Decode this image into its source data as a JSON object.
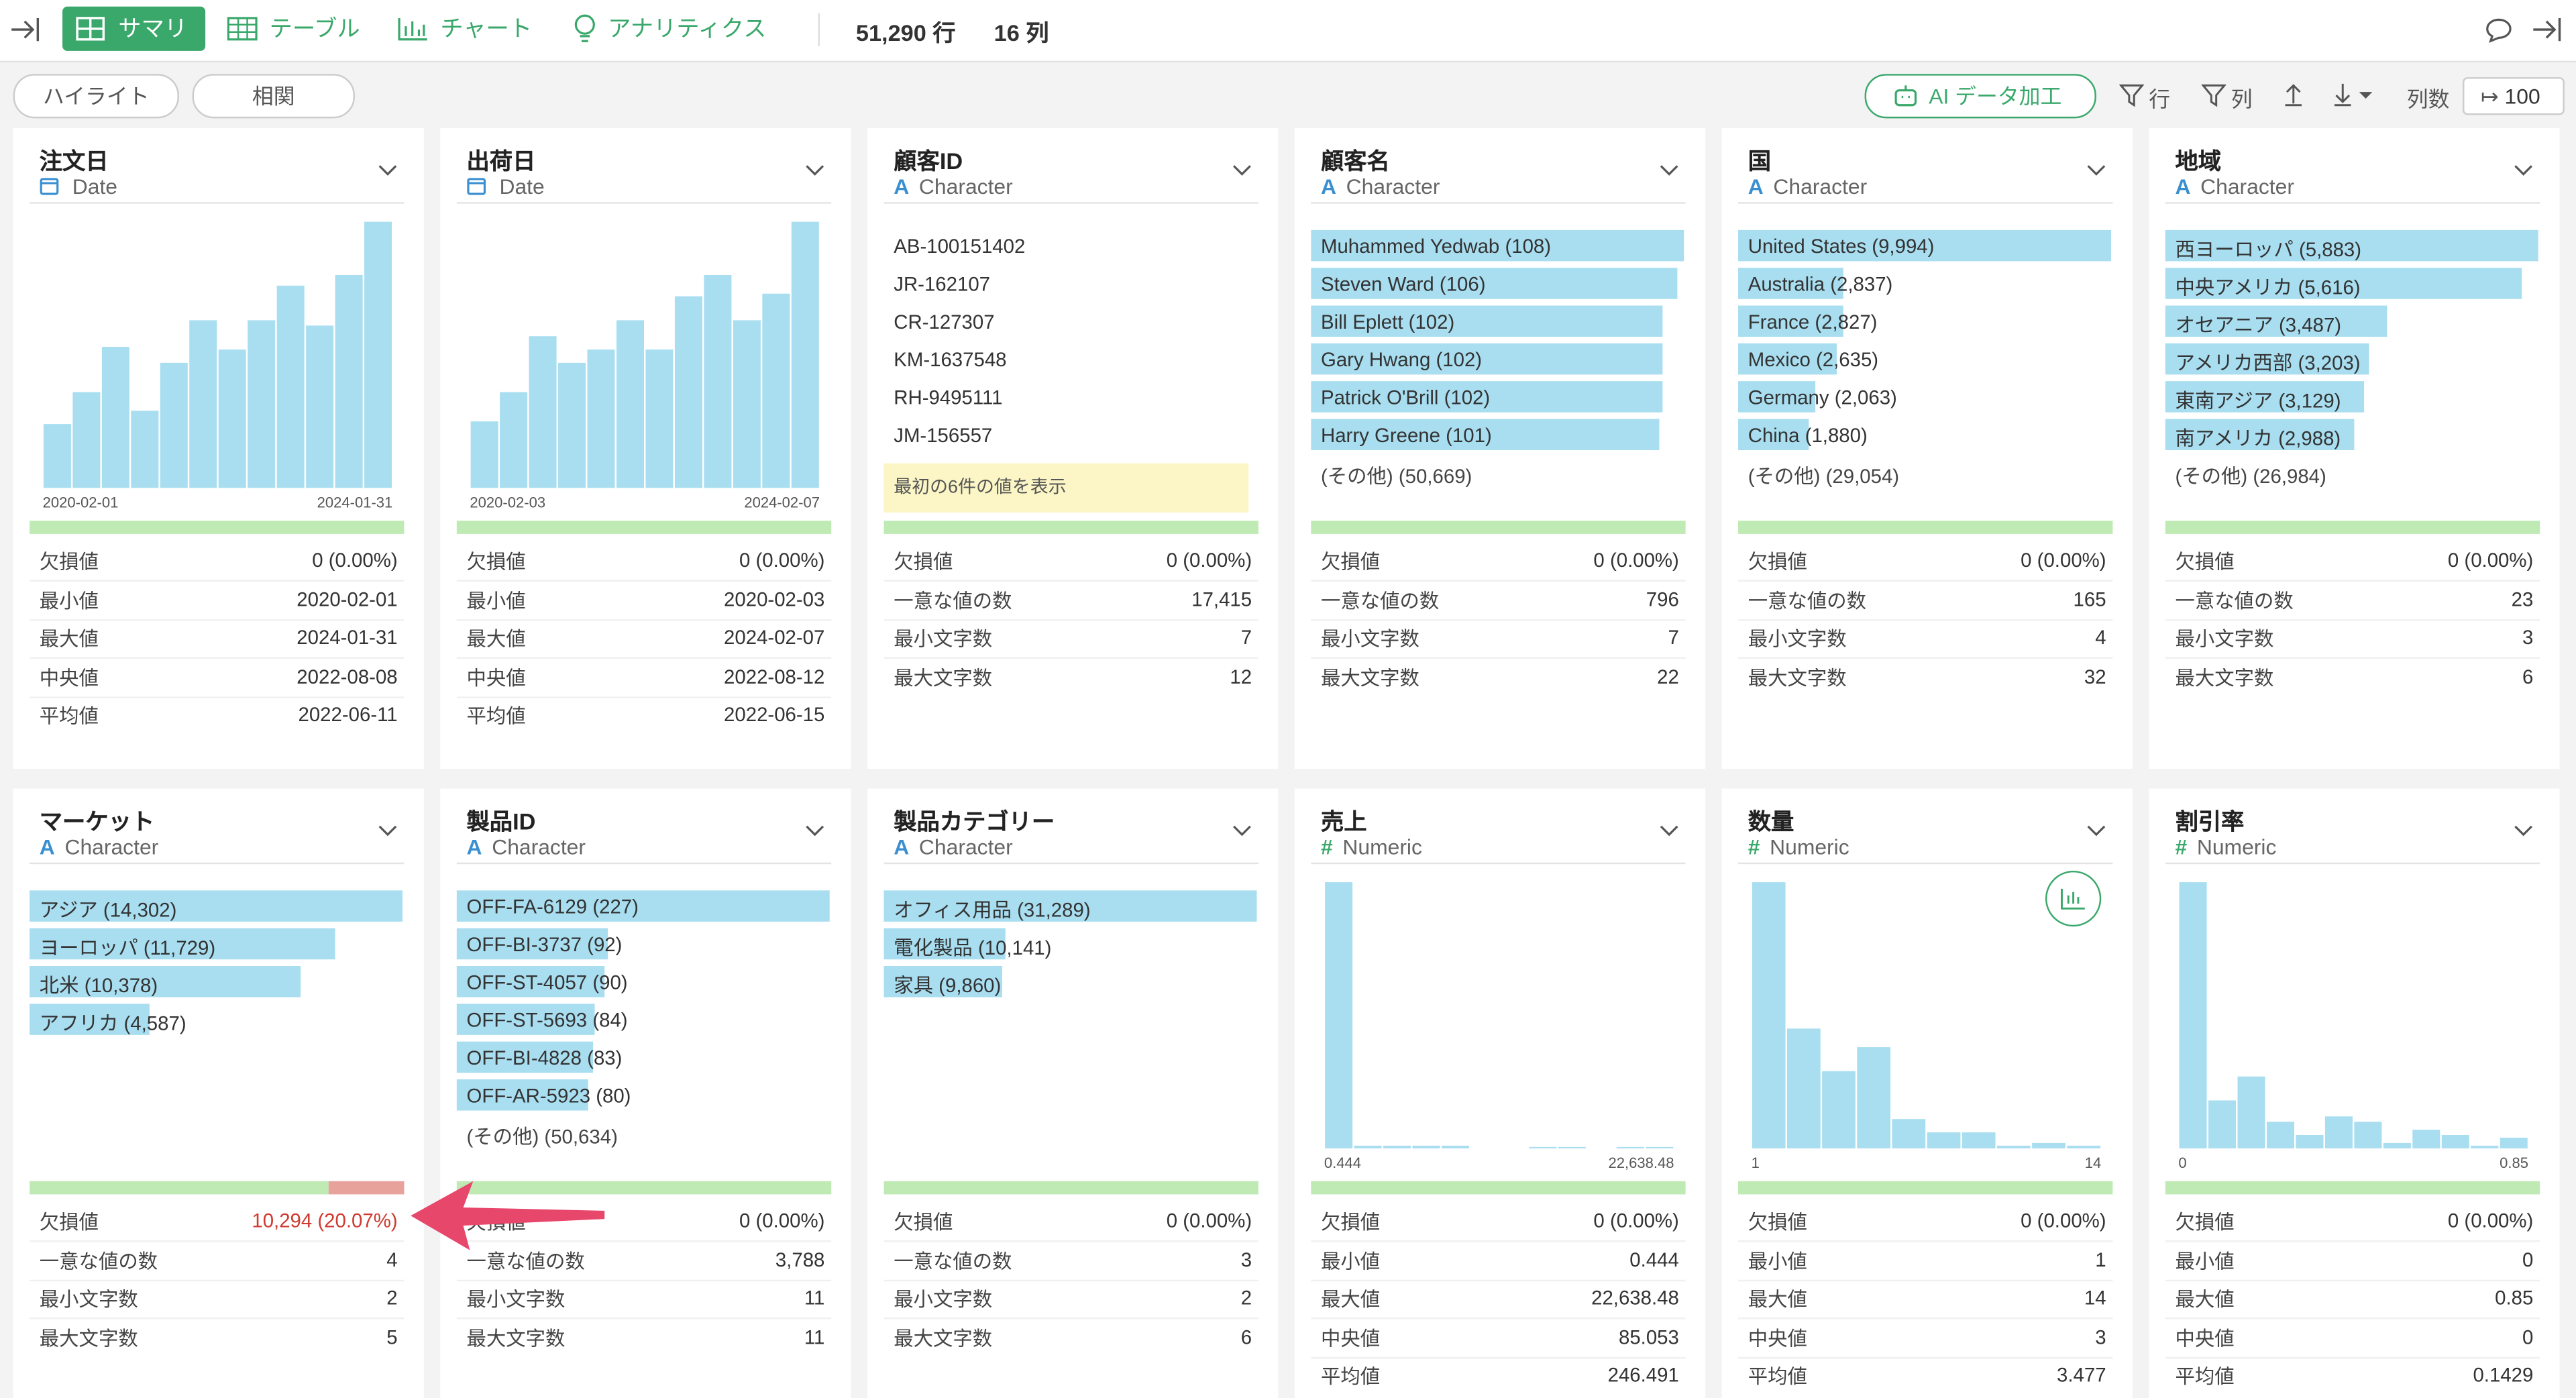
{
  "toolbar": {
    "tabs": [
      "サマリ",
      "テーブル",
      "チャート",
      "アナリティクス"
    ],
    "rows": "51,290 行",
    "cols": "16 列"
  },
  "subbar": {
    "buttons": [
      "ハイライト",
      "相関"
    ],
    "ai": "AI データ加工",
    "row_filter": "行",
    "col_filter": "列",
    "col_count_label": "列数",
    "col_count": "100"
  },
  "cards": [
    {
      "name": "注文日",
      "type": "Date",
      "chart": {
        "kind": "histogram",
        "bars": [
          24,
          36,
          53,
          29,
          47,
          63,
          52,
          63,
          76,
          61,
          80,
          100
        ],
        "xlabels": [
          "2020-02-01",
          "2024-01-31"
        ]
      },
      "missing_pct": 0,
      "stats": [
        {
          "label": "欠損値",
          "value": "0 (0.00%)"
        },
        {
          "label": "最小値",
          "value": "2020-02-01"
        },
        {
          "label": "最大値",
          "value": "2024-01-31"
        },
        {
          "label": "中央値",
          "value": "2022-08-08"
        },
        {
          "label": "平均値",
          "value": "2022-06-11"
        }
      ]
    },
    {
      "name": "出荷日",
      "type": "Date",
      "chart": {
        "kind": "histogram",
        "bars": [
          25,
          36,
          57,
          47,
          52,
          63,
          52,
          72,
          80,
          63,
          73,
          100
        ],
        "xlabels": [
          "2020-02-03",
          "2024-02-07"
        ]
      },
      "missing_pct": 0,
      "stats": [
        {
          "label": "欠損値",
          "value": "0 (0.00%)"
        },
        {
          "label": "最小値",
          "value": "2020-02-03"
        },
        {
          "label": "最大値",
          "value": "2024-02-07"
        },
        {
          "label": "中央値",
          "value": "2022-08-12"
        },
        {
          "label": "平均値",
          "value": "2022-06-15"
        }
      ]
    },
    {
      "name": "顧客ID",
      "type_icon": "A",
      "type": "Character",
      "chart": {
        "kind": "values",
        "items": [
          "AB-100151402",
          "JR-162107",
          "CR-127307",
          "KM-1637548",
          "RH-9495111",
          "JM-156557"
        ],
        "note": "最初の6件の値を表示"
      },
      "missing_pct": 0,
      "stats": [
        {
          "label": "欠損値",
          "value": "0 (0.00%)"
        },
        {
          "label": "一意な値の数",
          "value": "17,415"
        },
        {
          "label": "最小文字数",
          "value": "7"
        },
        {
          "label": "最大文字数",
          "value": "12"
        }
      ]
    },
    {
      "name": "顧客名",
      "type_icon": "A",
      "type": "Character",
      "chart": {
        "kind": "barlist",
        "items": [
          {
            "label": "Muhammed Yedwab (108)",
            "value": 108
          },
          {
            "label": "Steven Ward (106)",
            "value": 106
          },
          {
            "label": "Bill Eplett (102)",
            "value": 102
          },
          {
            "label": "Gary Hwang (102)",
            "value": 102
          },
          {
            "label": "Patrick O'Brill (102)",
            "value": 102
          },
          {
            "label": "Harry Greene (101)",
            "value": 101
          }
        ],
        "other": "(その他) (50,669)"
      },
      "missing_pct": 0,
      "stats": [
        {
          "label": "欠損値",
          "value": "0 (0.00%)"
        },
        {
          "label": "一意な値の数",
          "value": "796"
        },
        {
          "label": "最小文字数",
          "value": "7"
        },
        {
          "label": "最大文字数",
          "value": "22"
        }
      ]
    },
    {
      "name": "国",
      "type_icon": "A",
      "type": "Character",
      "chart": {
        "kind": "barlist",
        "items": [
          {
            "label": "United States (9,994)",
            "value": 9994
          },
          {
            "label": "Australia (2,837)",
            "value": 2837
          },
          {
            "label": "France (2,827)",
            "value": 2827
          },
          {
            "label": "Mexico (2,635)",
            "value": 2635
          },
          {
            "label": "Germany (2,063)",
            "value": 2063
          },
          {
            "label": "China (1,880)",
            "value": 1880
          }
        ],
        "other": "(その他) (29,054)"
      },
      "missing_pct": 0,
      "stats": [
        {
          "label": "欠損値",
          "value": "0 (0.00%)"
        },
        {
          "label": "一意な値の数",
          "value": "165"
        },
        {
          "label": "最小文字数",
          "value": "4"
        },
        {
          "label": "最大文字数",
          "value": "32"
        }
      ]
    },
    {
      "name": "地域",
      "type_icon": "A",
      "type": "Character",
      "chart": {
        "kind": "barlist",
        "items": [
          {
            "label": "西ヨーロッパ (5,883)",
            "value": 5883
          },
          {
            "label": "中央アメリカ (5,616)",
            "value": 5616
          },
          {
            "label": "オセアニア (3,487)",
            "value": 3487
          },
          {
            "label": "アメリカ西部 (3,203)",
            "value": 3203
          },
          {
            "label": "東南アジア (3,129)",
            "value": 3129
          },
          {
            "label": "南アメリカ (2,988)",
            "value": 2988
          }
        ],
        "other": "(その他) (26,984)"
      },
      "missing_pct": 0,
      "stats": [
        {
          "label": "欠損値",
          "value": "0 (0.00%)"
        },
        {
          "label": "一意な値の数",
          "value": "23"
        },
        {
          "label": "最小文字数",
          "value": "3"
        },
        {
          "label": "最大文字数",
          "value": "6"
        }
      ]
    },
    {
      "name": "マーケット",
      "type_icon": "A",
      "type": "Character",
      "chart": {
        "kind": "barlist",
        "items": [
          {
            "label": "アジア (14,302)",
            "value": 14302
          },
          {
            "label": "ヨーロッパ (11,729)",
            "value": 11729
          },
          {
            "label": "北米 (10,378)",
            "value": 10378
          },
          {
            "label": "アフリカ (4,587)",
            "value": 4587
          }
        ]
      },
      "missing_pct": 20.07,
      "stats": [
        {
          "label": "欠損値",
          "value": "10,294 (20.07%)",
          "alert": true
        },
        {
          "label": "一意な値の数",
          "value": "4"
        },
        {
          "label": "最小文字数",
          "value": "2"
        },
        {
          "label": "最大文字数",
          "value": "5"
        }
      ]
    },
    {
      "name": "製品ID",
      "type_icon": "A",
      "type": "Character",
      "chart": {
        "kind": "barlist",
        "items": [
          {
            "label": "OFF-FA-6129 (227)",
            "value": 227
          },
          {
            "label": "OFF-BI-3737 (92)",
            "value": 92
          },
          {
            "label": "OFF-ST-4057 (90)",
            "value": 90
          },
          {
            "label": "OFF-ST-5693 (84)",
            "value": 84
          },
          {
            "label": "OFF-BI-4828 (83)",
            "value": 83
          },
          {
            "label": "OFF-AR-5923 (80)",
            "value": 80
          }
        ],
        "other": "(その他) (50,634)"
      },
      "missing_pct": 0,
      "stats": [
        {
          "label": "欠損値",
          "value": "0 (0.00%)"
        },
        {
          "label": "一意な値の数",
          "value": "3,788"
        },
        {
          "label": "最小文字数",
          "value": "11"
        },
        {
          "label": "最大文字数",
          "value": "11"
        }
      ]
    },
    {
      "name": "製品カテゴリー",
      "type_icon": "A",
      "type": "Character",
      "chart": {
        "kind": "barlist",
        "items": [
          {
            "label": "オフィス用品 (31,289)",
            "value": 31289
          },
          {
            "label": "電化製品 (10,141)",
            "value": 10141
          },
          {
            "label": "家具 (9,860)",
            "value": 9860
          }
        ]
      },
      "missing_pct": 0,
      "stats": [
        {
          "label": "欠損値",
          "value": "0 (0.00%)"
        },
        {
          "label": "一意な値の数",
          "value": "3"
        },
        {
          "label": "最小文字数",
          "value": "2"
        },
        {
          "label": "最大文字数",
          "value": "6"
        }
      ]
    },
    {
      "name": "売上",
      "type_icon": "#",
      "type": "Numeric",
      "chart": {
        "kind": "histogram",
        "bars": [
          100,
          1,
          1,
          1,
          1,
          0,
          0,
          0.5,
          0.5,
          0,
          0.5,
          0.5
        ],
        "xlabels": [
          "0.444",
          "22,638.48"
        ]
      },
      "missing_pct": 0,
      "stats": [
        {
          "label": "欠損値",
          "value": "0 (0.00%)"
        },
        {
          "label": "最小値",
          "value": "0.444"
        },
        {
          "label": "最大値",
          "value": "22,638.48"
        },
        {
          "label": "中央値",
          "value": "85.053"
        },
        {
          "label": "平均値",
          "value": "246.491"
        }
      ]
    },
    {
      "name": "数量",
      "type_icon": "#",
      "type": "Numeric",
      "chart": {
        "kind": "histogram",
        "bars": [
          100,
          45,
          29,
          38,
          11,
          6,
          6,
          1,
          2,
          1
        ],
        "xlabels": [
          "1",
          "14"
        ]
      },
      "missing_pct": 0,
      "stats": [
        {
          "label": "欠損値",
          "value": "0 (0.00%)"
        },
        {
          "label": "最小値",
          "value": "1"
        },
        {
          "label": "最大値",
          "value": "14"
        },
        {
          "label": "中央値",
          "value": "3"
        },
        {
          "label": "平均値",
          "value": "3.477"
        }
      ]
    },
    {
      "name": "割引率",
      "type_icon": "#",
      "type": "Numeric",
      "chart": {
        "kind": "histogram",
        "bars": [
          100,
          18,
          27,
          10,
          5,
          12,
          10,
          2,
          7,
          5,
          1,
          4
        ],
        "xlabels": [
          "0",
          "0.85"
        ]
      },
      "missing_pct": 0,
      "stats": [
        {
          "label": "欠損値",
          "value": "0 (0.00%)"
        },
        {
          "label": "最小値",
          "value": "0"
        },
        {
          "label": "最大値",
          "value": "0.85"
        },
        {
          "label": "中央値",
          "value": "0"
        },
        {
          "label": "平均値",
          "value": "0.1429"
        }
      ]
    }
  ]
}
